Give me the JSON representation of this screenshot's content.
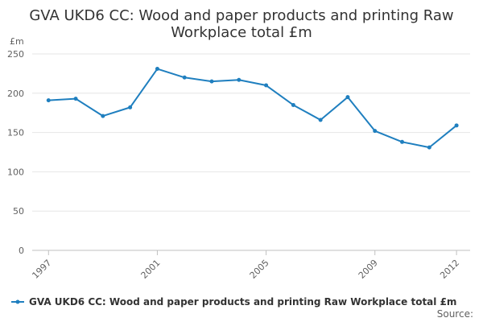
{
  "chart_data": {
    "type": "line",
    "title_lines": [
      "GVA UKD6 CC: Wood and paper products and printing Raw",
      "Workplace total £m"
    ],
    "ylabel": "£m",
    "xlabel": "",
    "x": [
      1997,
      1998,
      1999,
      2000,
      2001,
      2002,
      2003,
      2004,
      2005,
      2006,
      2007,
      2008,
      2009,
      2010,
      2011,
      2012
    ],
    "x_ticks": [
      1997,
      2001,
      2005,
      2009,
      2012
    ],
    "x_tick_labels": [
      "1997",
      "2001",
      "2005",
      "2009",
      "2012"
    ],
    "ylim": [
      0,
      250
    ],
    "y_ticks": [
      0,
      50,
      100,
      150,
      200,
      250
    ],
    "y_tick_labels": [
      "0",
      "50",
      "100",
      "150",
      "200",
      "250"
    ],
    "grid": true,
    "legend_position": "bottom",
    "series": [
      {
        "name": "GVA UKD6 CC: Wood and paper products and printing Raw Workplace total £m",
        "color": "#1f7fbf",
        "values": [
          191,
          193,
          171,
          182,
          231,
          220,
          215,
          217,
          210,
          185,
          166,
          195,
          152,
          138,
          131,
          159
        ]
      }
    ],
    "source_label": "Source:"
  }
}
